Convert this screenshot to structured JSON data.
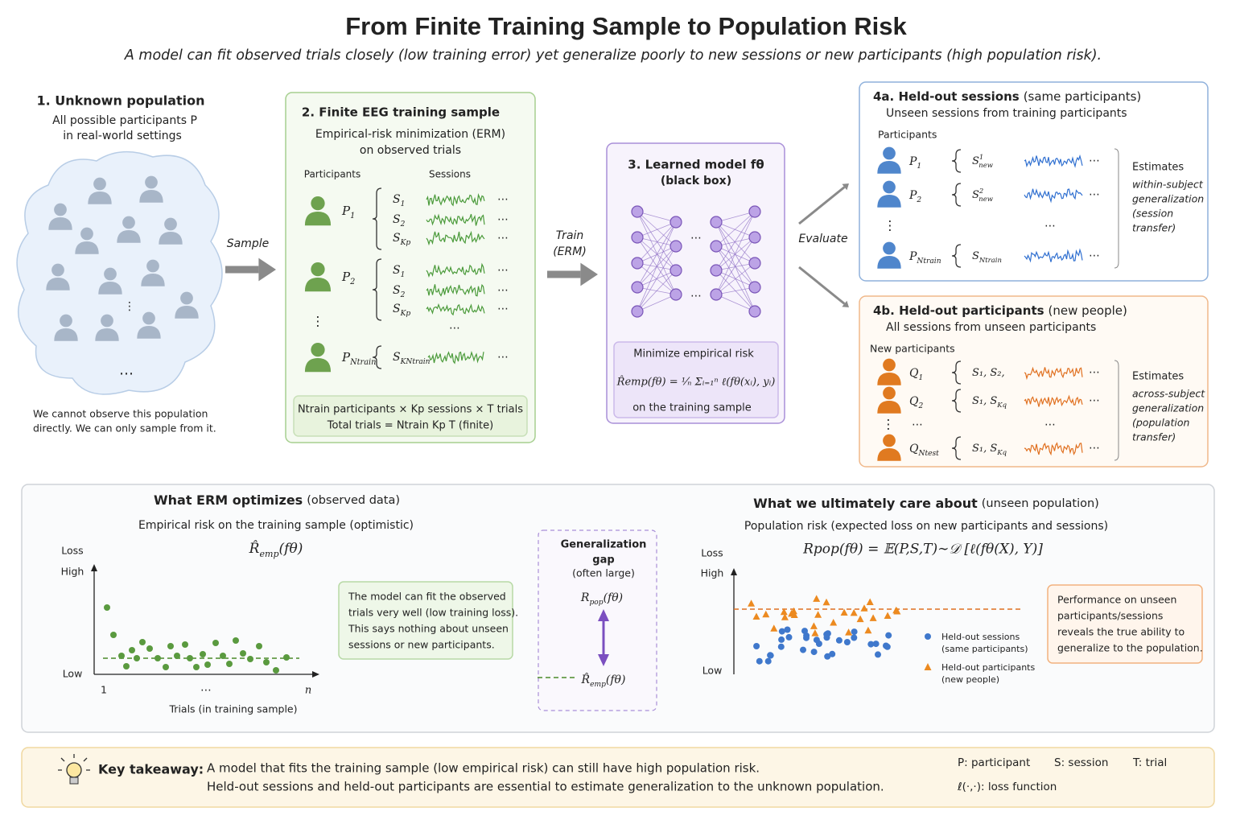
{
  "header": {
    "title": "From Finite Training Sample to Population Risk",
    "subtitle": "A model can fit observed trials closely (low training error) yet generalize poorly to new sessions or new participants (high population risk)."
  },
  "symbols": {
    "h": "⋯",
    "v": "⋮"
  },
  "population": {
    "title": "1. Unknown population",
    "desc": [
      "All possible participants P",
      "in real-world settings"
    ],
    "note": [
      "We cannot observe this population",
      "directly. We can only sample from it."
    ]
  },
  "arrows": {
    "sample": "Sample",
    "train": [
      "Train",
      "(ERM)"
    ],
    "evaluate": "Evaluate"
  },
  "training": {
    "title": "2. Finite EEG training sample",
    "desc": [
      "Empirical-risk minimization (ERM)",
      "on observed trials"
    ],
    "participants_header": "Participants",
    "sessions_header": "Sessions",
    "rows": [
      {
        "participant": {
          "b": "P",
          "s": "1"
        },
        "sessions": [
          {
            "b": "S",
            "s": "1"
          },
          {
            "b": "S",
            "s": "2"
          },
          {
            "b": "S",
            "s": "Kp"
          }
        ]
      },
      {
        "participant": {
          "b": "P",
          "s": "2"
        },
        "sessions": [
          {
            "b": "S",
            "s": "1"
          },
          {
            "b": "S",
            "s": "2"
          },
          {
            "b": "S",
            "s": "Kp"
          }
        ]
      },
      {
        "participant": {
          "b": "P",
          "s": "Ntrain"
        },
        "sessions": [
          {
            "b": "S",
            "s": "KNtrain"
          }
        ]
      }
    ],
    "summary": [
      "Ntrain participants × Kp sessions × T trials",
      "Total trials = Ntrain Kp T (finite)"
    ]
  },
  "model": {
    "title": "3. Learned model fθ",
    "subtitle": "(black box)",
    "objective": "Minimize empirical risk",
    "formula": "R̂emp(fθ) = ¹⁄ₙ Σᵢ₌₁ⁿ ℓ(fθ(xᵢ), yᵢ)",
    "objective_note": "on the training sample"
  },
  "heldout_sessions": {
    "title": "4a. Held-out sessions",
    "title_note": "(same participants)",
    "desc": "Unseen sessions from training participants",
    "participants_header": "Participants",
    "rows": [
      {
        "participant": {
          "b": "P",
          "s": "1"
        },
        "session": {
          "b": "S",
          "sup": "1",
          "s": "new"
        }
      },
      {
        "participant": {
          "b": "P",
          "s": "2"
        },
        "session": {
          "b": "S",
          "sup": "2",
          "s": "new"
        }
      },
      {
        "participant": {
          "b": "P",
          "s": "Ntrain"
        },
        "session": {
          "b": "S",
          "s": "Ntrain"
        }
      }
    ],
    "estimates": "Estimates",
    "estimates_desc": [
      "within-subject",
      "generalization",
      "(session",
      "transfer)"
    ]
  },
  "heldout_participants": {
    "title": "4b. Held-out participants",
    "title_note": "(new people)",
    "desc": "All sessions from unseen participants",
    "participants_header": "New participants",
    "rows": [
      {
        "participant": {
          "b": "Q",
          "s": "1"
        },
        "session": {
          "b": "S₁, S₂,"
        }
      },
      {
        "participant": {
          "b": "Q",
          "s": "2"
        },
        "session": {
          "b": "S₁, S",
          "s": "Kq"
        }
      },
      {
        "participant": {
          "b": "Q",
          "s": "Ntest"
        },
        "session": {
          "b": "S₁, S",
          "s": "Kq"
        }
      }
    ],
    "estimates": "Estimates",
    "estimates_desc": [
      "across-subject",
      "generalization",
      "(population",
      "transfer)"
    ]
  },
  "erm_panel": {
    "title": "What ERM optimizes",
    "title_note": "(observed data)",
    "desc": "Empirical risk on the training sample (optimistic)",
    "formula": {
      "b": "R̂",
      "s": "emp",
      "a": "(fθ)"
    },
    "y_label": "Loss",
    "y_high": "High",
    "y_low": "Low",
    "x_start": "1",
    "x_end": "n",
    "x_label": "Trials (in training sample)",
    "note": [
      "The model can fit the observed",
      "trials very well (low training loss).",
      "This says nothing about unseen",
      "sessions or new participants."
    ]
  },
  "gap": {
    "title": [
      "Generalization",
      "gap"
    ],
    "note": "(often large)",
    "top": {
      "b": "R",
      "s": "pop",
      "a": "(fθ)"
    },
    "bottom": {
      "b": "R̂",
      "s": "emp",
      "a": "(fθ)"
    }
  },
  "population_panel": {
    "title": "What we ultimately care about",
    "title_note": "(unseen population)",
    "desc": "Population risk (expected loss on new participants and sessions)",
    "formula": "Rpop(fθ) = 𝔼(P,S,T)∼𝒟 [ℓ(fθ(X), Y)]",
    "y_label": "Loss",
    "y_high": "High",
    "y_low": "Low",
    "legend": [
      {
        "name": "Held-out sessions",
        "note": "(same participants)"
      },
      {
        "name": "Held-out participants",
        "note": "(new people)"
      }
    ],
    "note": [
      "Performance on unseen",
      "participants/sessions",
      "reveals the true ability to",
      "generalize to the population."
    ]
  },
  "takeaway": {
    "label": "Key takeaway:",
    "lines": [
      "A model that fits the training sample (low empirical risk) can still have high population risk.",
      "Held-out sessions and held-out participants are essential to estimate generalization to the unknown population."
    ],
    "legend": [
      "P: participant",
      "S: session",
      "T: trial",
      "ℓ(·,·): loss function"
    ]
  }
}
